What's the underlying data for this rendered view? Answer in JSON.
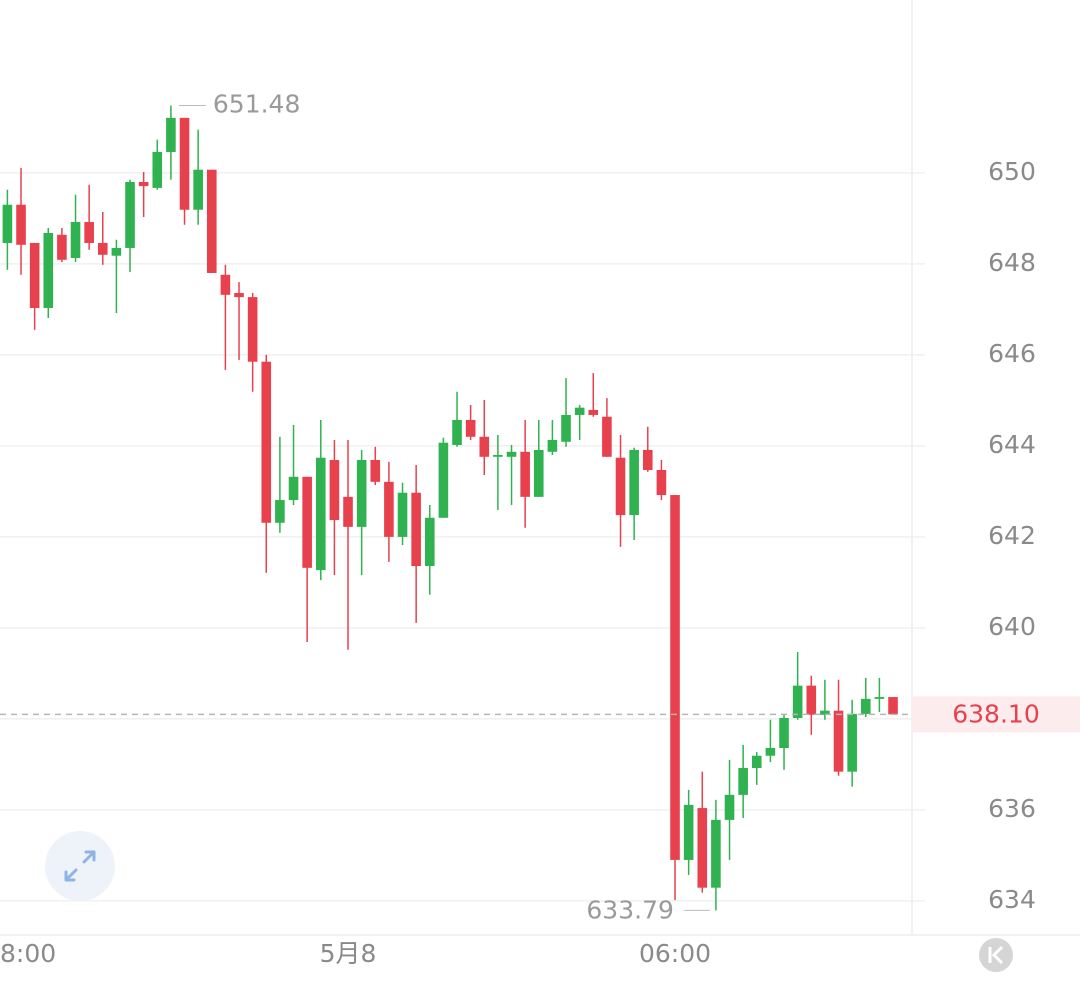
{
  "chart_data": {
    "type": "candlestick",
    "categories": [
      "8:00",
      null,
      null,
      null,
      null,
      null,
      null,
      null,
      null,
      null,
      null,
      null,
      null,
      null,
      null,
      null,
      null,
      null,
      null,
      null,
      null,
      null,
      null,
      null,
      null,
      "5月8",
      null,
      null,
      null,
      null,
      null,
      null,
      null,
      null,
      null,
      null,
      null,
      null,
      null,
      null,
      null,
      null,
      null,
      null,
      null,
      null,
      null,
      null,
      null,
      "06:00",
      null,
      null,
      null,
      null,
      null,
      null,
      null,
      null,
      null,
      null,
      null,
      null,
      null,
      null,
      null,
      null
    ],
    "open": [
      648.46,
      649.3,
      648.46,
      647.03,
      648.64,
      648.13,
      648.92,
      648.46,
      648.18,
      648.35,
      649.8,
      649.67,
      650.46,
      651.21,
      649.19,
      650.07,
      647.76,
      647.36,
      647.27,
      645.85,
      642.31,
      642.81,
      643.32,
      641.27,
      643.69,
      642.88,
      642.22,
      643.69,
      643.21,
      642.0,
      642.97,
      641.36,
      642.42,
      644.02,
      644.57,
      644.2,
      643.76,
      643.76,
      643.87,
      642.88,
      643.87,
      644.09,
      644.68,
      644.79,
      644.64,
      643.74,
      642.48,
      643.91,
      643.47,
      642.92,
      634.9,
      636.04,
      634.29,
      635.78,
      636.33,
      636.92,
      637.19,
      637.36,
      638.02,
      638.73,
      638.09,
      638.18,
      636.84,
      638.11,
      638.44,
      638.48
    ],
    "high": [
      649.63,
      650.11,
      648.46,
      648.79,
      648.79,
      649.52,
      649.74,
      649.14,
      648.53,
      649.85,
      650.02,
      650.73,
      651.48,
      651.21,
      650.95,
      650.07,
      647.98,
      647.6,
      647.36,
      646.0,
      644.2,
      644.46,
      643.32,
      644.57,
      644.13,
      644.13,
      643.91,
      643.98,
      643.65,
      643.19,
      643.58,
      642.7,
      644.18,
      645.19,
      644.9,
      645.01,
      644.24,
      644.02,
      644.57,
      644.57,
      644.57,
      645.49,
      644.9,
      645.6,
      645.05,
      644.24,
      643.96,
      644.42,
      643.69,
      642.92,
      636.44,
      636.84,
      636.22,
      637.1,
      637.43,
      637.27,
      637.98,
      638.09,
      639.47,
      638.95,
      638.86,
      638.86,
      638.42,
      638.9,
      638.9,
      638.48
    ],
    "low": [
      647.87,
      647.76,
      646.55,
      646.81,
      648.04,
      648.04,
      648.31,
      647.98,
      646.92,
      647.82,
      649.03,
      649.63,
      649.85,
      648.86,
      648.86,
      647.8,
      645.67,
      645.89,
      645.19,
      641.21,
      642.09,
      642.7,
      639.69,
      641.05,
      641.16,
      639.52,
      641.16,
      643.14,
      641.45,
      641.82,
      640.11,
      640.73,
      642.42,
      643.98,
      644.13,
      643.36,
      642.59,
      642.7,
      642.2,
      642.88,
      643.8,
      643.98,
      644.13,
      644.64,
      643.76,
      641.78,
      641.93,
      643.43,
      642.81,
      634.02,
      634.57,
      634.18,
      633.79,
      634.9,
      635.82,
      636.55,
      637.05,
      636.88,
      637.98,
      637.65,
      637.98,
      636.75,
      636.51,
      638.04,
      638.15,
      638.1
    ],
    "close": [
      649.3,
      648.42,
      647.03,
      648.68,
      648.09,
      648.92,
      648.46,
      648.2,
      648.35,
      649.8,
      649.71,
      650.46,
      651.21,
      649.19,
      650.07,
      647.8,
      647.32,
      647.27,
      645.85,
      642.31,
      642.81,
      643.32,
      641.32,
      643.74,
      642.37,
      642.22,
      643.69,
      643.21,
      642.0,
      642.97,
      641.36,
      642.42,
      644.07,
      644.57,
      644.2,
      643.76,
      643.8,
      643.87,
      642.88,
      643.91,
      644.13,
      644.68,
      644.84,
      644.68,
      643.76,
      642.48,
      643.91,
      643.47,
      642.92,
      634.9,
      636.11,
      634.29,
      635.78,
      636.33,
      636.92,
      637.19,
      637.36,
      638.02,
      638.73,
      638.09,
      638.18,
      636.84,
      638.11,
      638.44,
      638.48,
      638.1
    ],
    "up_color": "#2fb24f",
    "down_color": "#e8414e",
    "ylim": [
      633.25,
      653.8
    ],
    "yticks": [
      634,
      636,
      638,
      640,
      642,
      644,
      646,
      648,
      650
    ],
    "grid": true,
    "last_price": {
      "value": 638.1,
      "label": "638.10"
    },
    "max_index": 12,
    "min_index": 52
  }
}
